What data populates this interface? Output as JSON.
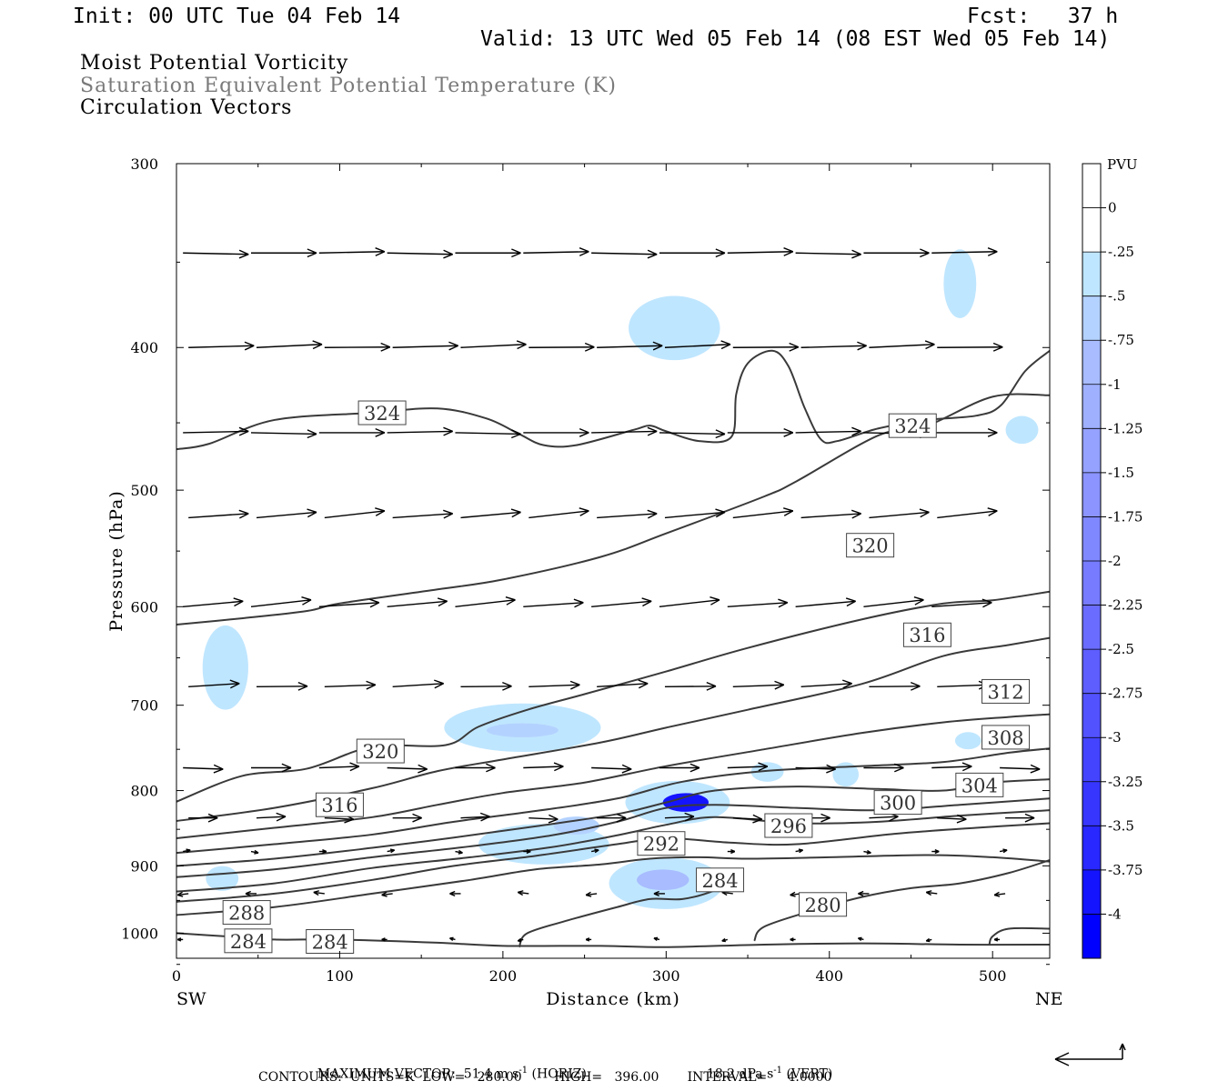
{
  "header": {
    "init": "Init: 00 UTC Tue 04 Feb 14",
    "fcst": "Fcst:   37 h",
    "valid": "Valid: 13 UTC Wed 05 Feb 14 (08 EST Wed 05 Feb 14)"
  },
  "fields": {
    "line1": "Moist Potential Vorticity",
    "line2": "Saturation Equivalent Potential Temperature (K)",
    "line3": "Circulation Vectors"
  },
  "axes": {
    "ylabel": "Pressure (hPa)",
    "xlabel": "Distance (km)",
    "left_end": "SW",
    "right_end": "NE",
    "y_ticks": [
      "300",
      "400",
      "500",
      "600",
      "700",
      "800",
      "900",
      "1000"
    ],
    "x_ticks": [
      "0",
      "100",
      "200",
      "300",
      "400",
      "500"
    ]
  },
  "colorbar": {
    "unit": "PVU",
    "labels": [
      "0",
      "-.25",
      "-.5",
      "-.75",
      "-1",
      "-1.25",
      "-1.5",
      "-1.75",
      "-2",
      "-2.25",
      "-2.5",
      "-2.75",
      "-3",
      "-3.25",
      "-3.5",
      "-3.75",
      "-4"
    ],
    "colors": [
      "#ffffff",
      "#ffffff",
      "#bfe6ff",
      "#b4d2ff",
      "#a8bcff",
      "#9fb0ff",
      "#95a2ff",
      "#8b94ff",
      "#8088ff",
      "#767bff",
      "#6a6cff",
      "#5e5eff",
      "#5252ff",
      "#4444ff",
      "#3636ff",
      "#2828ff",
      "#1414ff",
      "#0000ff"
    ]
  },
  "footer": {
    "max_vector": "MAXIMUM VECTOR:  51.4 m s",
    "horiz": "(HORIZ)",
    "vert_value": "18.2 dPa s",
    "vert": "(VERT)",
    "exp": "-1",
    "contours": "CONTOURS:  UNITS=K  LOW=   280.00        HIGH=   396.00       INTERVAL=     4.0000"
  },
  "chart_data": {
    "type": "contour",
    "x_range_km": [
      0,
      535
    ],
    "y_range_hpa": [
      300,
      1040
    ],
    "y_scale": "log",
    "contour_labels": [
      {
        "text": "324",
        "x": 126,
        "p": 443
      },
      {
        "text": "324",
        "x": 451,
        "p": 452
      },
      {
        "text": "320",
        "x": 425,
        "p": 545
      },
      {
        "text": "316",
        "x": 460,
        "p": 627
      },
      {
        "text": "312",
        "x": 508,
        "p": 685
      },
      {
        "text": "308",
        "x": 508,
        "p": 736
      },
      {
        "text": "320",
        "x": 125,
        "p": 752
      },
      {
        "text": "304",
        "x": 492,
        "p": 793
      },
      {
        "text": "316",
        "x": 100,
        "p": 818
      },
      {
        "text": "300",
        "x": 442,
        "p": 815
      },
      {
        "text": "296",
        "x": 375,
        "p": 845
      },
      {
        "text": "292",
        "x": 297,
        "p": 869
      },
      {
        "text": "284",
        "x": 333,
        "p": 920
      },
      {
        "text": "280",
        "x": 396,
        "p": 956
      },
      {
        "text": "288",
        "x": 43,
        "p": 968
      },
      {
        "text": "284",
        "x": 44,
        "p": 1012
      },
      {
        "text": "284",
        "x": 94,
        "p": 1013
      }
    ],
    "contours": [
      {
        "value": 324,
        "pts": [
          [
            0,
            469
          ],
          [
            20,
            465
          ],
          [
            60,
            448
          ],
          [
            120,
            443
          ],
          [
            160,
            440
          ],
          [
            190,
            447
          ],
          [
            210,
            458
          ],
          [
            225,
            466
          ],
          [
            245,
            466
          ],
          [
            280,
            455
          ],
          [
            290,
            452
          ],
          [
            300,
            456
          ],
          [
            320,
            463
          ],
          [
            340,
            460
          ],
          [
            343,
            430
          ],
          [
            350,
            410
          ],
          [
            365,
            402
          ],
          [
            375,
            412
          ],
          [
            385,
            440
          ],
          [
            395,
            462
          ],
          [
            405,
            463
          ],
          [
            430,
            454
          ],
          [
            460,
            448
          ],
          [
            490,
            445
          ],
          [
            505,
            438
          ],
          [
            520,
            415
          ],
          [
            535,
            402
          ]
        ]
      },
      {
        "value": 320,
        "pts": [
          [
            0,
            617
          ],
          [
            40,
            611
          ],
          [
            80,
            604
          ],
          [
            100,
            597
          ],
          [
            160,
            584
          ],
          [
            200,
            575
          ],
          [
            260,
            555
          ],
          [
            300,
            535
          ],
          [
            360,
            505
          ],
          [
            380,
            493
          ],
          [
            430,
            459
          ],
          [
            460,
            452
          ],
          [
            500,
            432
          ],
          [
            535,
            431
          ]
        ]
      },
      {
        "value": 320,
        "pts": [
          [
            0,
            814
          ],
          [
            40,
            782
          ],
          [
            80,
            773
          ],
          [
            120,
            747
          ],
          [
            165,
            745
          ],
          [
            185,
            724
          ],
          [
            215,
            705
          ],
          [
            250,
            688
          ],
          [
            300,
            664
          ],
          [
            350,
            640
          ],
          [
            420,
            612
          ],
          [
            470,
            597
          ],
          [
            500,
            594
          ],
          [
            535,
            586
          ]
        ]
      },
      {
        "value": 316,
        "pts": [
          [
            0,
            839
          ],
          [
            60,
            822
          ],
          [
            120,
            797
          ],
          [
            160,
            776
          ],
          [
            200,
            762
          ],
          [
            260,
            742
          ],
          [
            300,
            725
          ],
          [
            350,
            705
          ],
          [
            420,
            677
          ],
          [
            470,
            648
          ],
          [
            510,
            637
          ],
          [
            535,
            630
          ]
        ]
      },
      {
        "value": 312,
        "pts": [
          [
            0,
            862
          ],
          [
            60,
            848
          ],
          [
            120,
            834
          ],
          [
            160,
            818
          ],
          [
            200,
            803
          ],
          [
            250,
            790
          ],
          [
            300,
            770
          ],
          [
            360,
            750
          ],
          [
            420,
            731
          ],
          [
            470,
            719
          ],
          [
            510,
            713
          ],
          [
            535,
            710
          ]
        ]
      },
      {
        "value": 308,
        "pts": [
          [
            0,
            882
          ],
          [
            60,
            870
          ],
          [
            120,
            857
          ],
          [
            170,
            840
          ],
          [
            220,
            826
          ],
          [
            270,
            810
          ],
          [
            310,
            789
          ],
          [
            360,
            776
          ],
          [
            420,
            770
          ],
          [
            470,
            765
          ],
          [
            510,
            754
          ],
          [
            535,
            749
          ]
        ]
      },
      {
        "value": 304,
        "pts": [
          [
            0,
            900
          ],
          [
            60,
            890
          ],
          [
            120,
            875
          ],
          [
            170,
            861
          ],
          [
            220,
            846
          ],
          [
            270,
            830
          ],
          [
            300,
            815
          ],
          [
            330,
            800
          ],
          [
            380,
            795
          ],
          [
            430,
            798
          ],
          [
            470,
            800
          ],
          [
            500,
            790
          ],
          [
            535,
            786
          ]
        ]
      },
      {
        "value": 300,
        "pts": [
          [
            0,
            916
          ],
          [
            60,
            905
          ],
          [
            120,
            888
          ],
          [
            180,
            873
          ],
          [
            230,
            858
          ],
          [
            270,
            840
          ],
          [
            300,
            822
          ],
          [
            330,
            818
          ],
          [
            380,
            822
          ],
          [
            430,
            825
          ],
          [
            480,
            818
          ],
          [
            535,
            810
          ]
        ]
      },
      {
        "value": 296,
        "pts": [
          [
            0,
            937
          ],
          [
            60,
            925
          ],
          [
            120,
            903
          ],
          [
            180,
            888
          ],
          [
            230,
            874
          ],
          [
            270,
            858
          ],
          [
            300,
            844
          ],
          [
            330,
            834
          ],
          [
            380,
            842
          ],
          [
            430,
            840
          ],
          [
            480,
            832
          ],
          [
            535,
            825
          ]
        ]
      },
      {
        "value": 292,
        "pts": [
          [
            0,
            952
          ],
          [
            60,
            940
          ],
          [
            120,
            920
          ],
          [
            170,
            900
          ],
          [
            220,
            886
          ],
          [
            270,
            870
          ],
          [
            300,
            862
          ],
          [
            340,
            868
          ],
          [
            380,
            870
          ],
          [
            440,
            856
          ],
          [
            490,
            848
          ],
          [
            535,
            842
          ]
        ]
      },
      {
        "value": 288,
        "pts": [
          [
            0,
            972
          ],
          [
            60,
            960
          ],
          [
            120,
            940
          ],
          [
            180,
            920
          ],
          [
            220,
            905
          ],
          [
            260,
            898
          ],
          [
            290,
            890
          ],
          [
            320,
            888
          ],
          [
            350,
            890
          ],
          [
            400,
            888
          ],
          [
            460,
            885
          ],
          [
            500,
            888
          ],
          [
            535,
            894
          ]
        ]
      },
      {
        "value": 284,
        "pts": [
          [
            210,
            1022
          ],
          [
            215,
            1000
          ],
          [
            240,
            980
          ],
          [
            270,
            960
          ],
          [
            290,
            948
          ],
          [
            310,
            948
          ],
          [
            330,
            935
          ],
          [
            345,
            915
          ]
        ]
      },
      {
        "value": 280,
        "pts": [
          [
            354,
            1012
          ],
          [
            360,
            990
          ],
          [
            390,
            965
          ],
          [
            420,
            945
          ],
          [
            450,
            932
          ],
          [
            480,
            925
          ],
          [
            510,
            910
          ],
          [
            535,
            892
          ]
        ]
      },
      {
        "value": 284,
        "pts": [
          [
            0,
            1000
          ],
          [
            30,
            1005
          ],
          [
            60,
            1010
          ],
          [
            100,
            1010
          ],
          [
            160,
            1015
          ],
          [
            200,
            1020
          ],
          [
            260,
            1020
          ],
          [
            300,
            1022
          ],
          [
            360,
            1018
          ],
          [
            420,
            1016
          ],
          [
            480,
            1018
          ],
          [
            535,
            1018
          ]
        ]
      },
      {
        "value": 280,
        "pts": [
          [
            498,
            1018
          ],
          [
            500,
            1005
          ],
          [
            510,
            993
          ],
          [
            535,
            993
          ]
        ]
      }
    ],
    "pv_shading": [
      {
        "level": -0.25,
        "x": 30,
        "p": 660,
        "rx": 14,
        "rp": 45
      },
      {
        "level": -0.25,
        "x": 28,
        "p": 918,
        "rx": 10,
        "rp": 18
      },
      {
        "level": -0.25,
        "x": 212,
        "p": 725,
        "rx": 48,
        "rp": 28
      },
      {
        "level": -0.5,
        "x": 212,
        "p": 728,
        "rx": 22,
        "rp": 8
      },
      {
        "level": -0.25,
        "x": 225,
        "p": 870,
        "rx": 40,
        "rp": 28
      },
      {
        "level": -0.5,
        "x": 245,
        "p": 845,
        "rx": 14,
        "rp": 12
      },
      {
        "level": -0.25,
        "x": 300,
        "p": 925,
        "rx": 35,
        "rp": 38
      },
      {
        "level": -0.75,
        "x": 298,
        "p": 920,
        "rx": 16,
        "rp": 15
      },
      {
        "level": -0.25,
        "x": 307,
        "p": 815,
        "rx": 32,
        "rp": 28
      },
      {
        "level": -3.75,
        "x": 312,
        "p": 815,
        "rx": 14,
        "rp": 12
      },
      {
        "level": -0.25,
        "x": 362,
        "p": 777,
        "rx": 10,
        "rp": 12
      },
      {
        "level": -0.25,
        "x": 410,
        "p": 780,
        "rx": 8,
        "rp": 15
      },
      {
        "level": -0.25,
        "x": 305,
        "p": 388,
        "rx": 28,
        "rp": 20
      },
      {
        "level": -0.25,
        "x": 480,
        "p": 362,
        "rx": 10,
        "rp": 20
      },
      {
        "level": -0.25,
        "x": 518,
        "p": 455,
        "rx": 10,
        "rp": 10
      },
      {
        "level": -0.25,
        "x": 485,
        "p": 740,
        "rx": 8,
        "rp": 10
      }
    ],
    "vector_rows": [
      {
        "p": 345,
        "u": 36,
        "w": 0
      },
      {
        "p": 400,
        "u": 36,
        "w": 1
      },
      {
        "p": 457,
        "u": 36,
        "w": 0
      },
      {
        "p": 522,
        "u": 33,
        "w": 3
      },
      {
        "p": 600,
        "u": 33,
        "w": 3
      },
      {
        "p": 680,
        "u": 28,
        "w": 1
      },
      {
        "p": 772,
        "u": 22,
        "w": 0
      },
      {
        "p": 835,
        "u": 16,
        "w": 0
      },
      {
        "p": 880,
        "u": 4,
        "w": 0
      },
      {
        "p": 940,
        "u": -6,
        "w": 0
      },
      {
        "p": 1010,
        "u": -3,
        "w": 0
      }
    ]
  }
}
